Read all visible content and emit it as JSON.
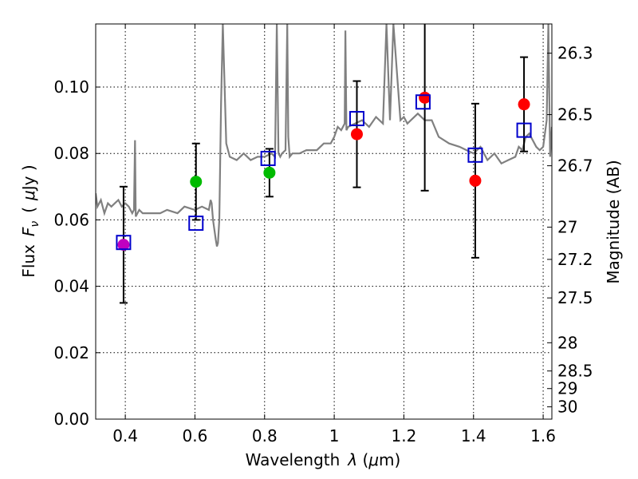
{
  "chart_data": {
    "type": "scatter",
    "xlabel": "Wavelength",
    "xlabel_symbol": "λ",
    "xlabel_unit_open": " (",
    "xlabel_unit_mu": "μ",
    "xlabel_unit_rest": "m)",
    "ylabel": "Flux",
    "ylabel_symbol": "F",
    "ylabel_symbol_sub": "ν",
    "ylabel_unit_open": "(",
    "ylabel_unit_mu": "μ",
    "ylabel_unit_rest": "Jy )",
    "y2label": "Magnitude (AB)",
    "xlim": [
      0.315,
      1.625
    ],
    "ylim": [
      0.0,
      0.119
    ],
    "grid": true,
    "x_ticks": [
      0.4,
      0.6,
      0.8,
      1.0,
      1.2,
      1.4,
      1.6
    ],
    "x_tick_labels": [
      "0.4",
      "0.6",
      "0.8",
      "1",
      "1.2",
      "1.4",
      "1.6"
    ],
    "y_ticks": [
      0.0,
      0.02,
      0.04,
      0.06,
      0.08,
      0.1
    ],
    "y_tick_labels": [
      "0.00",
      "0.02",
      "0.04",
      "0.06",
      "0.08",
      "0.10"
    ],
    "y2_ticks": [
      {
        "label": "26.3",
        "flux": 0.1102
      },
      {
        "label": "26.5",
        "flux": 0.0917
      },
      {
        "label": "26.7",
        "flux": 0.0763
      },
      {
        "label": "27",
        "flux": 0.0578
      },
      {
        "label": "27.2",
        "flux": 0.0481
      },
      {
        "label": "27.5",
        "flux": 0.0365
      },
      {
        "label": "28",
        "flux": 0.023
      },
      {
        "label": "28.5",
        "flux": 0.0145
      },
      {
        "label": "29",
        "flux": 0.0092
      },
      {
        "label": "30",
        "flux": 0.0037
      }
    ],
    "spectrum": {
      "name": "model spectrum",
      "color": "#808080",
      "x": [
        0.315,
        0.32,
        0.33,
        0.34,
        0.35,
        0.36,
        0.37,
        0.38,
        0.39,
        0.4,
        0.41,
        0.42,
        0.425,
        0.428,
        0.43,
        0.44,
        0.45,
        0.47,
        0.5,
        0.52,
        0.55,
        0.57,
        0.6,
        0.62,
        0.64,
        0.645,
        0.648,
        0.652,
        0.66,
        0.663,
        0.666,
        0.67,
        0.675,
        0.68,
        0.69,
        0.7,
        0.72,
        0.74,
        0.76,
        0.78,
        0.8,
        0.82,
        0.83,
        0.835,
        0.84,
        0.845,
        0.85,
        0.86,
        0.865,
        0.868,
        0.872,
        0.88,
        0.9,
        0.92,
        0.95,
        0.97,
        0.99,
        1.0,
        1.01,
        1.02,
        1.03,
        1.032,
        1.035,
        1.04,
        1.06,
        1.08,
        1.1,
        1.12,
        1.14,
        1.15,
        1.16,
        1.17,
        1.19,
        1.2,
        1.21,
        1.22,
        1.24,
        1.26,
        1.28,
        1.3,
        1.33,
        1.36,
        1.38,
        1.4,
        1.42,
        1.44,
        1.46,
        1.48,
        1.5,
        1.52,
        1.53,
        1.54,
        1.55,
        1.56,
        1.58,
        1.59,
        1.6,
        1.61,
        1.615,
        1.62,
        1.625
      ],
      "y": [
        0.068,
        0.064,
        0.066,
        0.062,
        0.065,
        0.064,
        0.065,
        0.066,
        0.064,
        0.065,
        0.064,
        0.062,
        0.063,
        0.084,
        0.061,
        0.063,
        0.062,
        0.062,
        0.062,
        0.063,
        0.062,
        0.064,
        0.063,
        0.064,
        0.063,
        0.066,
        0.065,
        0.06,
        0.054,
        0.052,
        0.053,
        0.06,
        0.095,
        0.119,
        0.083,
        0.079,
        0.078,
        0.08,
        0.078,
        0.079,
        0.079,
        0.08,
        0.079,
        0.119,
        0.08,
        0.079,
        0.08,
        0.081,
        0.119,
        0.085,
        0.079,
        0.08,
        0.08,
        0.081,
        0.081,
        0.083,
        0.083,
        0.085,
        0.088,
        0.087,
        0.089,
        0.117,
        0.087,
        0.088,
        0.089,
        0.09,
        0.088,
        0.091,
        0.089,
        0.119,
        0.09,
        0.119,
        0.09,
        0.091,
        0.089,
        0.09,
        0.092,
        0.09,
        0.09,
        0.085,
        0.083,
        0.082,
        0.081,
        0.08,
        0.082,
        0.078,
        0.08,
        0.077,
        0.078,
        0.079,
        0.082,
        0.081,
        0.085,
        0.086,
        0.082,
        0.081,
        0.082,
        0.09,
        0.119,
        0.079,
        0.088
      ]
    },
    "series": [
      {
        "name": "observed photometry",
        "marker": "circle",
        "points": [
          {
            "x": 0.395,
            "y": 0.0525,
            "err": 0.0175,
            "color": "#c000c0"
          },
          {
            "x": 0.603,
            "y": 0.0715,
            "err": 0.0115,
            "color": "#00bb00"
          },
          {
            "x": 0.814,
            "y": 0.0742,
            "err": 0.0072,
            "color": "#00bb00"
          },
          {
            "x": 1.065,
            "y": 0.0858,
            "err": 0.016,
            "color": "#ff0000"
          },
          {
            "x": 1.26,
            "y": 0.0968,
            "err": 0.028,
            "color": "#ff0000"
          },
          {
            "x": 1.405,
            "y": 0.0718,
            "err": 0.0232,
            "color": "#ff0000"
          },
          {
            "x": 1.545,
            "y": 0.0948,
            "err": 0.0142,
            "color": "#ff0000"
          }
        ]
      },
      {
        "name": "model photometry",
        "marker": "open-square",
        "color": "#0000cc",
        "points": [
          {
            "x": 0.395,
            "y": 0.0532
          },
          {
            "x": 0.603,
            "y": 0.059
          },
          {
            "x": 0.81,
            "y": 0.0785
          },
          {
            "x": 1.065,
            "y": 0.0905
          },
          {
            "x": 1.255,
            "y": 0.0955
          },
          {
            "x": 1.405,
            "y": 0.0795
          },
          {
            "x": 1.545,
            "y": 0.087
          }
        ]
      }
    ]
  }
}
